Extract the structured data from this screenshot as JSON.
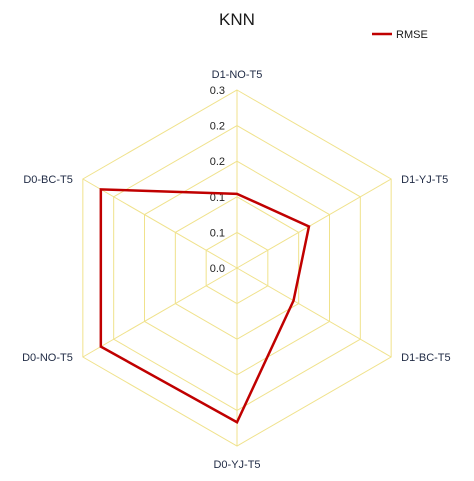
{
  "chart_data": {
    "type": "radar",
    "title": "KNN",
    "axes": [
      "D1-NO-T5",
      "D1-YJ-T5",
      "D1-BC-T5",
      "D0-YJ-T5",
      "D0-NO-T5",
      "D0-BC-T5"
    ],
    "tick_labels": [
      "0.0",
      "0.1",
      "0.1",
      "0.2",
      "0.2",
      "0.3"
    ],
    "rlim": [
      0,
      0.3
    ],
    "series": [
      {
        "name": "RMSE",
        "values": [
          0.125,
          0.14,
          0.11,
          0.26,
          0.265,
          0.265
        ]
      }
    ],
    "legend_position": "top-right",
    "grid": true,
    "colors": {
      "grid": "#f0e28c",
      "series": "#c00000",
      "axis_label": "#1f2a44"
    }
  }
}
